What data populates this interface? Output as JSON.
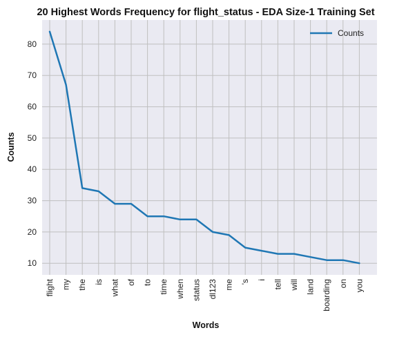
{
  "chart_data": {
    "type": "line",
    "title": "20 Highest Words Frequency for flight_status - EDA Size-1 Training Set",
    "xlabel": "Words",
    "ylabel": "Counts",
    "categories": [
      "flight",
      "my",
      "the",
      "is",
      "what",
      "of",
      "to",
      "time",
      "when",
      "status",
      "dl123",
      "me",
      "'s",
      "i",
      "tell",
      "will",
      "land",
      "boarding",
      "on",
      "you"
    ],
    "series": [
      {
        "name": "Counts",
        "values": [
          84,
          67,
          34,
          33,
          29,
          29,
          25,
          25,
          24,
          24,
          20,
          19,
          15,
          14,
          13,
          13,
          12,
          11,
          11,
          10
        ],
        "color": "#1f77b4"
      }
    ],
    "ylim": [
      6.3,
      87.7
    ],
    "yticks": [
      10,
      20,
      30,
      40,
      50,
      60,
      70,
      80
    ],
    "grid": true,
    "legend_position": "top-right",
    "background_color": "#eaeaf2",
    "grid_color": "#bfbfbf"
  }
}
